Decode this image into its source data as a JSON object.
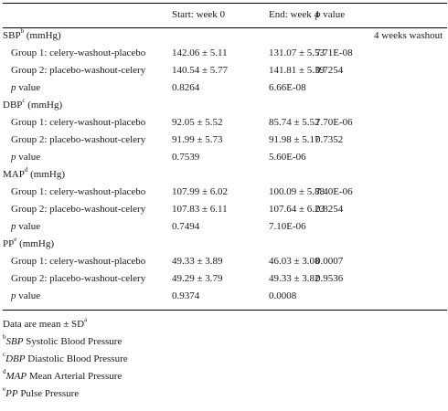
{
  "header": {
    "start": "Start: week 0",
    "end": "End: week 4",
    "p_italic": "p",
    "p_rest": " value"
  },
  "washout_note": "4 weeks washout",
  "sections": [
    {
      "label": "SBP",
      "sup": "b",
      "unit": " (mmHg)",
      "g1_label": "Group 1: celery-washout-placebo",
      "g1_start": "142.06 ± 5.11",
      "g1_end": "131.07 ± 5.53",
      "g1_p": "7.71E-08",
      "g2_label": "Group 2: placebo-washout-celery",
      "g2_start": "140.54 ± 5.77",
      "g2_end": "141.81 ± 5.39",
      "g2_p": "0.7254",
      "pv_italic": "p",
      "pv_rest": " value",
      "pv_start": "0.8264",
      "pv_end": "6.66E-08"
    },
    {
      "label": "DBP",
      "sup": "c",
      "unit": " (mmHg)",
      "g1_label": "Group 1: celery-washout-placebo",
      "g1_start": "92.05 ± 5.52",
      "g1_end": "85.74 ± 5.52",
      "g1_p": "7.70E-06",
      "g2_label": "Group 2: placebo-washout-celery",
      "g2_start": "91.99 ± 5.73",
      "g2_end": "91.98 ± 5.17",
      "g2_p": "0.7352",
      "pv_italic": "p",
      "pv_rest": " value",
      "pv_start": "0.7539",
      "pv_end": "5.60E-06"
    },
    {
      "label": "MAP",
      "sup": "d",
      "unit": " (mmHg)",
      "g1_label": "Group 1: celery-washout-placebo",
      "g1_start": "107.99 ± 6.02",
      "g1_end": "100.09 ± 5.88",
      "g1_p": "7.40E-06",
      "g2_label": "Group 2: placebo-washout-celery",
      "g2_start": "107.83 ± 6.11",
      "g2_end": "107.64 ± 6.23",
      "g2_p": "0.8254",
      "pv_italic": "p",
      "pv_rest": " value",
      "pv_start": "0.7494",
      "pv_end": "7.10E-06"
    },
    {
      "label": "PP",
      "sup": "e",
      "unit": " (mmHg)",
      "g1_label": "Group 1: celery-washout-placebo",
      "g1_start": "49.33 ± 3.89",
      "g1_end": "46.03 ± 3.08",
      "g1_p": "0.0007",
      "g2_label": "Group 2: placebo-washout-celery",
      "g2_start": "49.29 ± 3.79",
      "g2_end": "49.33 ± 3.82",
      "g2_p": "0.9536",
      "pv_italic": "p",
      "pv_rest": " value",
      "pv_start": "0.9374",
      "pv_end": "0.0008"
    }
  ],
  "footnotes": [
    {
      "sup": "",
      "abbr": "",
      "text": "Data are mean ± SD",
      "trail_sup": "a"
    },
    {
      "sup": "b",
      "abbr": "SBP",
      "text": " Systolic Blood Pressure",
      "trail_sup": ""
    },
    {
      "sup": "c",
      "abbr": "DBP",
      "text": " Diastolic Blood Pressure",
      "trail_sup": ""
    },
    {
      "sup": "d",
      "abbr": "MAP",
      "text": " Mean Arterial Pressure",
      "trail_sup": ""
    },
    {
      "sup": "e",
      "abbr": "PP",
      "text": " Pulse Pressure",
      "trail_sup": ""
    }
  ]
}
